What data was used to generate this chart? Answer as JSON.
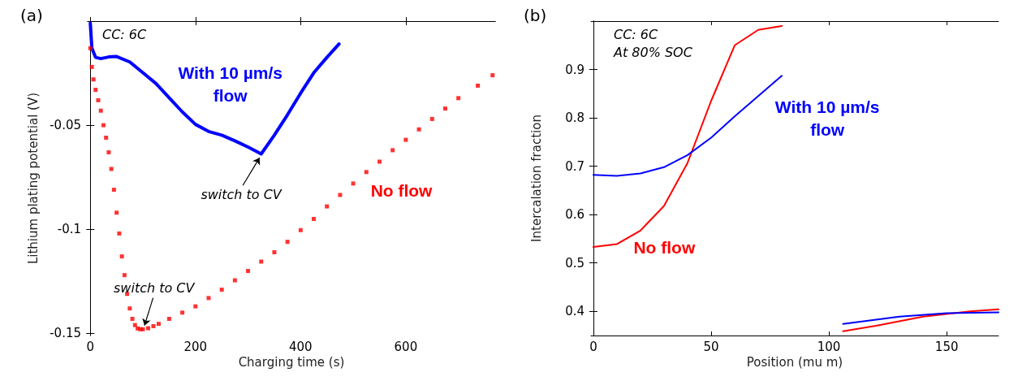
{
  "chart_data": [
    {
      "type": "line",
      "title": "(a)",
      "xlabel": "Charging time (s)",
      "ylabel": "Lithium plating potential (V)",
      "xlim": [
        -5,
        770
      ],
      "ylim": [
        -0.151,
        0
      ],
      "xticks": [
        0,
        200,
        400,
        600
      ],
      "yticks": [
        -0.15,
        -0.1,
        -0.05
      ],
      "grid": false,
      "legend": false,
      "annotations": [
        "CC: 6C",
        {
          "text": "switch to CV",
          "x": 325,
          "y": -0.0638
        },
        {
          "text": "switch to CV",
          "x": 100,
          "y": -0.148
        }
      ],
      "series": [
        {
          "name": "With 10 µm/s flow",
          "color": "#0000ff",
          "marker": "none",
          "x": [
            0,
            3,
            10,
            20,
            35,
            50,
            75,
            100,
            125,
            150,
            175,
            200,
            225,
            250,
            275,
            300,
            325,
            350,
            375,
            400,
            425,
            450,
            473
          ],
          "values": [
            -0.001,
            -0.013,
            -0.0174,
            -0.018,
            -0.0172,
            -0.017,
            -0.0196,
            -0.0248,
            -0.03,
            -0.0368,
            -0.0436,
            -0.0496,
            -0.053,
            -0.0548,
            -0.0575,
            -0.0605,
            -0.0638,
            -0.0548,
            -0.045,
            -0.0346,
            -0.0248,
            -0.0174,
            -0.011
          ]
        },
        {
          "name": "No flow",
          "color": "#ff0000",
          "type": "scatter",
          "marker": "square",
          "x": [
            0,
            3,
            6,
            10,
            15,
            20,
            25,
            30,
            35,
            40,
            45,
            50,
            55,
            60,
            65,
            70,
            75,
            80,
            85,
            90,
            95,
            100,
            110,
            120,
            130,
            150,
            175,
            200,
            225,
            250,
            275,
            300,
            325,
            350,
            375,
            400,
            425,
            450,
            475,
            500,
            525,
            550,
            575,
            600,
            625,
            650,
            675,
            700,
            737,
            765
          ],
          "values": [
            -0.013,
            -0.022,
            -0.028,
            -0.033,
            -0.038,
            -0.043,
            -0.05,
            -0.056,
            -0.063,
            -0.071,
            -0.081,
            -0.092,
            -0.102,
            -0.113,
            -0.122,
            -0.131,
            -0.138,
            -0.143,
            -0.146,
            -0.1476,
            -0.148,
            -0.148,
            -0.1475,
            -0.1465,
            -0.1454,
            -0.143,
            -0.14,
            -0.137,
            -0.133,
            -0.129,
            -0.1245,
            -0.12,
            -0.1155,
            -0.111,
            -0.106,
            -0.1004,
            -0.095,
            -0.089,
            -0.0835,
            -0.078,
            -0.0725,
            -0.0675,
            -0.062,
            -0.057,
            -0.052,
            -0.047,
            -0.042,
            -0.037,
            -0.031,
            -0.026
          ]
        }
      ]
    },
    {
      "type": "line",
      "title": "(b)",
      "xlabel": "Position (mu m)",
      "ylabel": "Intercalation fraction",
      "xlim": [
        -1,
        172
      ],
      "ylim": [
        0.35,
        1.0
      ],
      "xticks": [
        0,
        50,
        100,
        150
      ],
      "yticks": [
        0.4,
        0.5,
        0.6,
        0.7,
        0.8,
        0.9
      ],
      "grid": false,
      "legend": false,
      "annotations": [
        "CC: 6C",
        "At 80% SOC"
      ],
      "series": [
        {
          "name": "No flow",
          "color": "#ff0000",
          "x": [
            0,
            10,
            20,
            30,
            40,
            50,
            60,
            70,
            80,
            93,
            106,
            120,
            140,
            160,
            172
          ],
          "values": [
            0.533,
            0.539,
            0.567,
            0.618,
            0.707,
            0.835,
            0.95,
            0.982,
            0.99,
            null,
            0.359,
            0.37,
            0.389,
            0.4,
            0.404
          ]
        },
        {
          "name": "With 10 µm/s flow",
          "color": "#0000ff",
          "x": [
            0,
            10,
            20,
            30,
            40,
            50,
            60,
            70,
            80,
            93,
            106,
            130,
            150,
            172
          ],
          "values": [
            0.682,
            0.68,
            0.685,
            0.698,
            0.723,
            0.759,
            0.803,
            0.845,
            0.887,
            null,
            0.374,
            0.389,
            0.396,
            0.398
          ]
        }
      ]
    }
  ]
}
